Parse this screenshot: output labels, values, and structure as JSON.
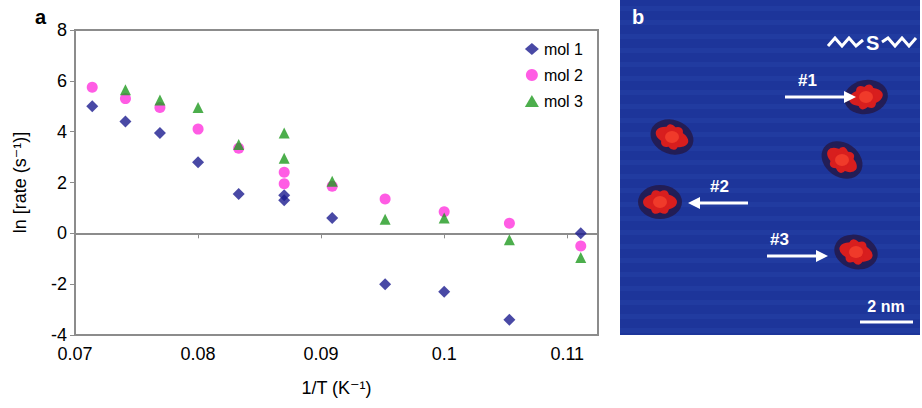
{
  "chart_data": {
    "type": "scatter",
    "panel_label": "a",
    "x_label": "1/T (K⁻¹)",
    "y_label": "ln [rate (s⁻¹)]",
    "xlim": [
      0.07,
      0.1125
    ],
    "xticks": [
      0.07,
      0.08,
      0.09,
      0.1,
      0.11
    ],
    "ylim": [
      -4,
      8
    ],
    "yticks": [
      -4,
      -2,
      0,
      2,
      4,
      6,
      8
    ],
    "grid": false,
    "legend": "upper right",
    "series": [
      {
        "name": "mol 1",
        "color": "#1c1c8e",
        "marker": "diamond",
        "x": [
          0.0714,
          0.0741,
          0.0769,
          0.08,
          0.0833,
          0.087,
          0.087,
          0.0909,
          0.0952,
          0.1,
          0.1053,
          0.1111
        ],
        "values": [
          5.0,
          4.4,
          3.95,
          2.8,
          1.55,
          1.5,
          1.3,
          0.6,
          -2.0,
          -2.3,
          -3.4,
          0.0
        ]
      },
      {
        "name": "mol 2",
        "color": "#ff33dd",
        "marker": "circle",
        "x": [
          0.0714,
          0.0741,
          0.0769,
          0.08,
          0.0833,
          0.087,
          0.087,
          0.0909,
          0.0952,
          0.1,
          0.1053,
          0.1111
        ],
        "values": [
          5.75,
          5.3,
          4.95,
          4.1,
          3.35,
          2.4,
          1.95,
          1.85,
          1.35,
          0.85,
          0.4,
          -0.5
        ]
      },
      {
        "name": "mol 3",
        "color": "#1f9a1f",
        "marker": "triangle",
        "x": [
          0.0741,
          0.0769,
          0.08,
          0.0833,
          0.087,
          0.087,
          0.0909,
          0.0952,
          0.1,
          0.1053,
          0.1111
        ],
        "values": [
          5.65,
          5.25,
          4.95,
          3.5,
          3.95,
          2.95,
          2.05,
          0.55,
          0.6,
          -0.25,
          -0.95
        ]
      }
    ]
  },
  "image_panel": {
    "panel_label": "b",
    "logo": "S",
    "labels": [
      "#1",
      "#2",
      "#3"
    ],
    "scale_bar": "2 nm"
  }
}
